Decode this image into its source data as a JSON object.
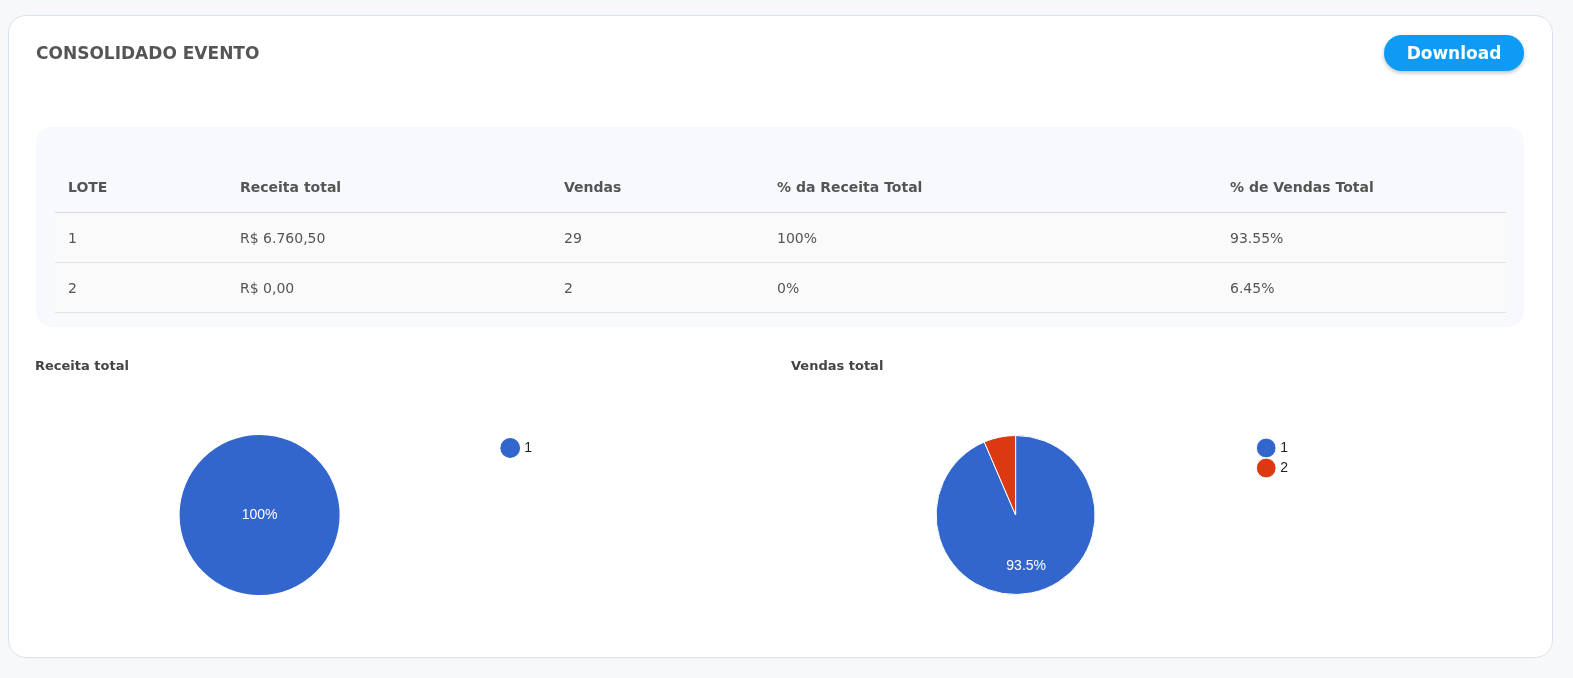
{
  "chart_data": [
    {
      "type": "other",
      "title": "CONSOLIDADO EVENTO",
      "annotations": [
        "Download",
        "LOTE",
        "Receita total",
        "Vendas",
        "% da Receita Total",
        "% de Vendas Total",
        "1",
        "R$ 6.760,50",
        "29",
        "100%",
        "93.55%",
        "2",
        "R$ 0,00",
        "2",
        "0%",
        "6.45%"
      ]
    },
    {
      "type": "pie",
      "title": "Receita total",
      "categories": [
        "1"
      ],
      "values": [
        100
      ],
      "colors": [
        "#3366cc"
      ],
      "value_labels": [
        "100%"
      ],
      "legend": "right"
    },
    {
      "type": "pie",
      "title": "Vendas total",
      "categories": [
        "1",
        "2"
      ],
      "values": [
        93.55,
        6.45
      ],
      "colors": [
        "#3366cc",
        "#dc3912"
      ],
      "value_labels": [
        "93.5%",
        null
      ],
      "legend": "right"
    }
  ]
}
